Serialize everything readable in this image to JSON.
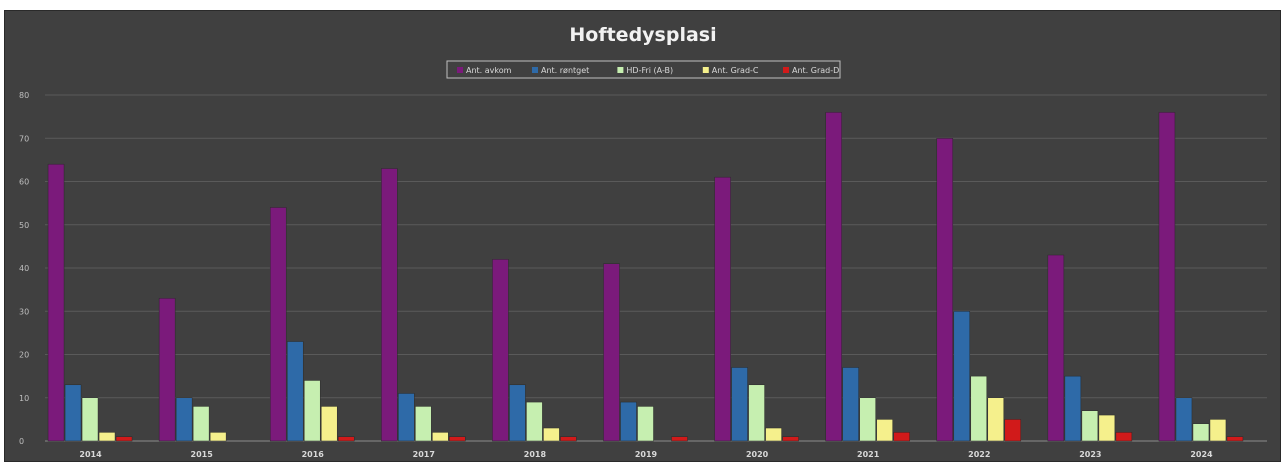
{
  "chart_data": {
    "type": "bar",
    "title": "Hoftedysplasi",
    "xlabel": "",
    "ylabel": "",
    "ylim": [
      0,
      80
    ],
    "yticks": [
      0,
      10,
      20,
      30,
      40,
      50,
      60,
      70,
      80
    ],
    "grid": true,
    "legend_position": "top-center",
    "categories": [
      "2014",
      "2015",
      "2016",
      "2017",
      "2018",
      "2019",
      "2020",
      "2021",
      "2022",
      "2023",
      "2024"
    ],
    "series": [
      {
        "name": "Ant. avkom",
        "color": "#7b1a7b",
        "values": [
          64,
          33,
          54,
          63,
          42,
          41,
          61,
          76,
          70,
          43,
          76
        ]
      },
      {
        "name": "Ant. røntget",
        "color": "#2e6aa8",
        "values": [
          13,
          10,
          23,
          11,
          13,
          9,
          17,
          17,
          30,
          15,
          10
        ]
      },
      {
        "name": "HD-Fri (A-B)",
        "color": "#c6efb0",
        "values": [
          10,
          8,
          14,
          8,
          9,
          8,
          13,
          10,
          15,
          7,
          4
        ]
      },
      {
        "name": "Ant. Grad-C",
        "color": "#f5f08c",
        "values": [
          2,
          2,
          8,
          2,
          3,
          0,
          3,
          5,
          10,
          6,
          5
        ]
      },
      {
        "name": "Ant. Grad-D",
        "color": "#d11a1a",
        "values": [
          1,
          0,
          1,
          1,
          1,
          1,
          1,
          2,
          5,
          2,
          1
        ]
      }
    ]
  }
}
